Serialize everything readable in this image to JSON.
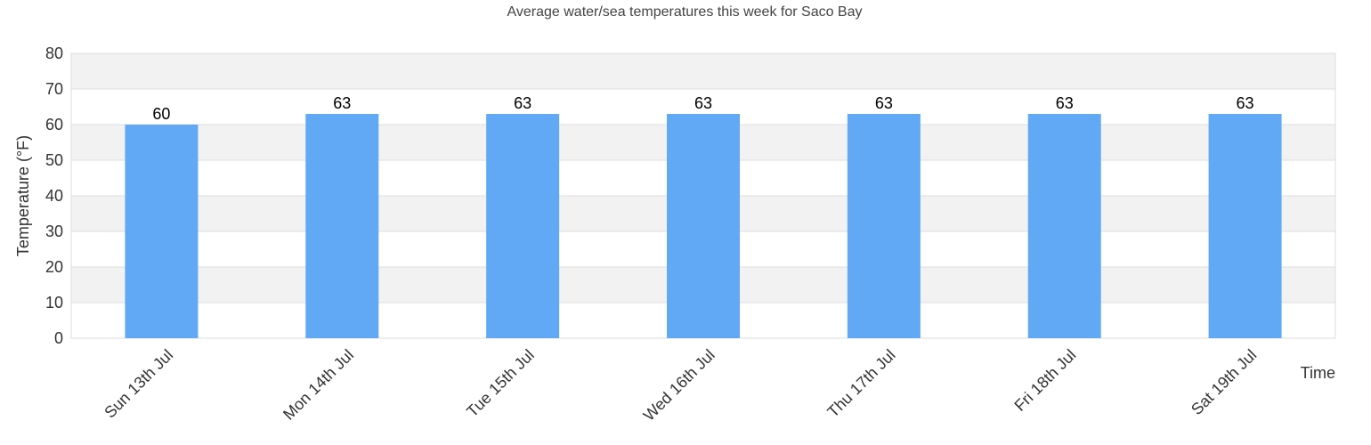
{
  "chart_data": {
    "type": "bar",
    "title": "Average water/sea temperatures this week for Saco Bay",
    "xlabel": "Time",
    "ylabel": "Temperature (°F)",
    "categories": [
      "Sun 13th Jul",
      "Mon 14th Jul",
      "Tue 15th Jul",
      "Wed 16th Jul",
      "Thu 17th Jul",
      "Fri 18th Jul",
      "Sat 19th Jul"
    ],
    "values": [
      60,
      63,
      63,
      63,
      63,
      63,
      63
    ],
    "ylim": [
      0,
      80
    ],
    "yticks": [
      0,
      10,
      20,
      30,
      40,
      50,
      60,
      70,
      80
    ],
    "grid": true,
    "legend": "none",
    "bar_color": "#61a8f5",
    "band_color": "#f2f2f2"
  }
}
